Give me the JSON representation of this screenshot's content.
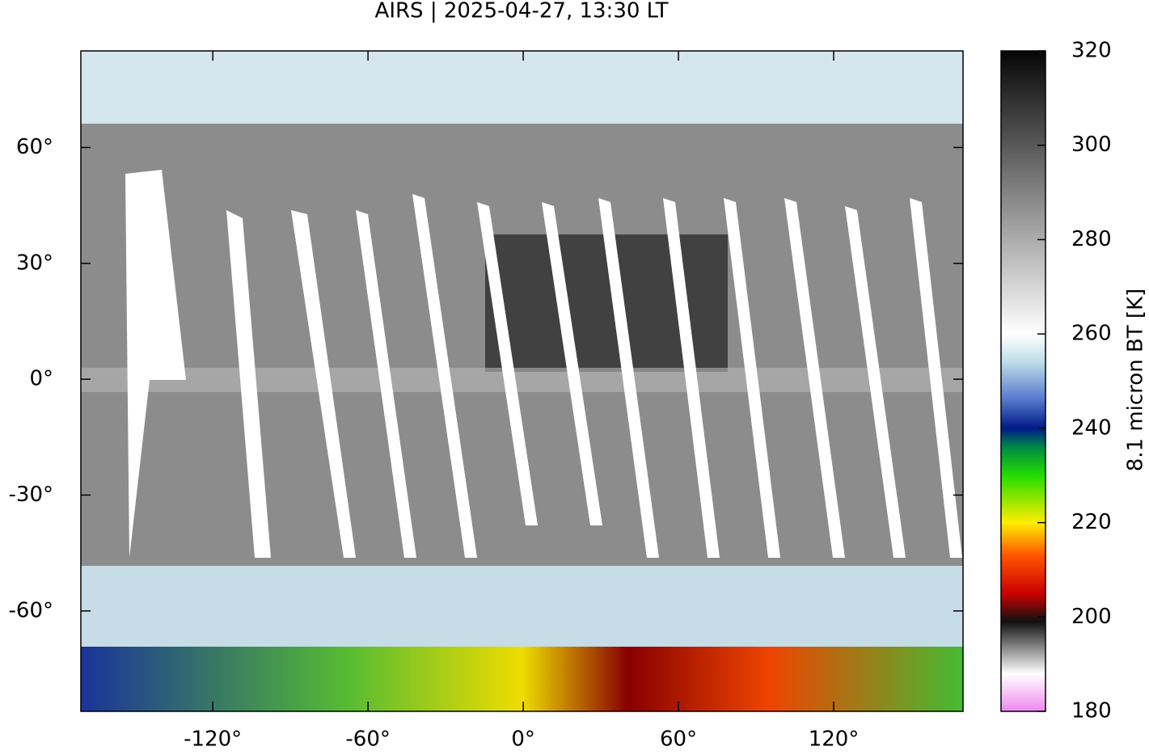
{
  "chart_data": {
    "type": "map",
    "title": "AIRS | 2025-04-27, 13:30 LT",
    "xlim": [
      -171,
      170
    ],
    "ylim": [
      -86,
      85
    ],
    "xticks": [
      {
        "value": -120,
        "label": "-120°"
      },
      {
        "value": -60,
        "label": "-60°"
      },
      {
        "value": 0,
        "label": "0°"
      },
      {
        "value": 60,
        "label": "60°"
      },
      {
        "value": 120,
        "label": "120°"
      }
    ],
    "yticks": [
      {
        "value": 60,
        "label": "60°"
      },
      {
        "value": 30,
        "label": "30°"
      },
      {
        "value": 0,
        "label": "0°"
      },
      {
        "value": -30,
        "label": "-30°"
      },
      {
        "value": -60,
        "label": "-60°"
      }
    ],
    "colorbar": {
      "label": "8.1 micron BT [K]",
      "lim": [
        180,
        320
      ],
      "ticks": [
        180,
        200,
        220,
        240,
        260,
        280,
        300,
        320
      ],
      "colormap": [
        {
          "value": 180,
          "color": "#ee88ee"
        },
        {
          "value": 188,
          "color": "#ffffff"
        },
        {
          "value": 199,
          "color": "#111111"
        },
        {
          "value": 205,
          "color": "#cc0000"
        },
        {
          "value": 213,
          "color": "#ff5500"
        },
        {
          "value": 220,
          "color": "#ffee00"
        },
        {
          "value": 230,
          "color": "#22dd00"
        },
        {
          "value": 236,
          "color": "#008844"
        },
        {
          "value": 240,
          "color": "#001a88"
        },
        {
          "value": 246,
          "color": "#5577cc"
        },
        {
          "value": 254,
          "color": "#bcdce8"
        },
        {
          "value": 260,
          "color": "#ffffff"
        },
        {
          "value": 320,
          "color": "#050505"
        }
      ]
    }
  }
}
